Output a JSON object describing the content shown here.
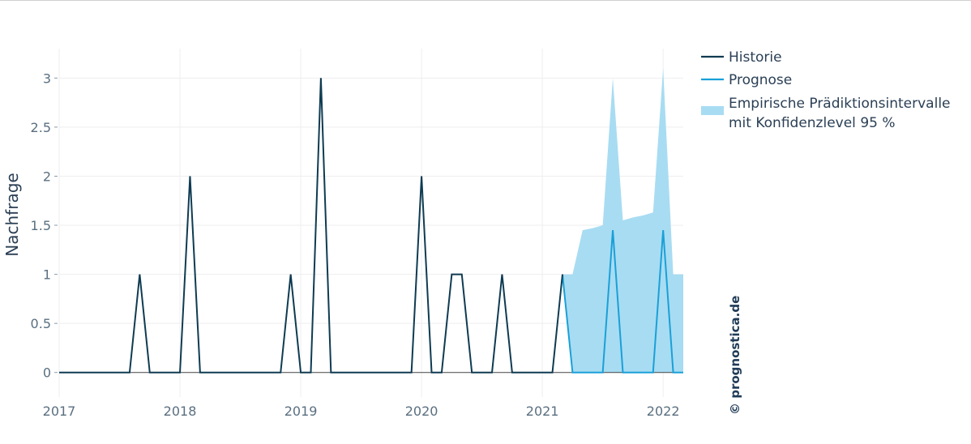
{
  "chart_data": {
    "type": "line",
    "ylabel": "Nachfrage",
    "xlabel": "",
    "x_ticks": [
      "2017",
      "2018",
      "2019",
      "2020",
      "2021",
      "2022"
    ],
    "y_ticks": [
      "0",
      "0.5",
      "1",
      "1.5",
      "2",
      "2.5",
      "3"
    ],
    "xlim": [
      "2017-01",
      "2022-03"
    ],
    "ylim": [
      -0.25,
      3.3
    ],
    "grid": true,
    "legend_position": "right",
    "watermark": "© prognostica.de",
    "colors": {
      "history": "#0f3b52",
      "forecast": "#1aa0d8",
      "interval": "#a8dcf2",
      "grid": "#eeeeee",
      "zeroline": "#444444"
    },
    "series": [
      {
        "name": "Historie",
        "x": [
          "2017-01",
          "2017-02",
          "2017-03",
          "2017-04",
          "2017-05",
          "2017-06",
          "2017-07",
          "2017-08",
          "2017-09",
          "2017-10",
          "2017-11",
          "2017-12",
          "2018-01",
          "2018-02",
          "2018-03",
          "2018-04",
          "2018-05",
          "2018-06",
          "2018-07",
          "2018-08",
          "2018-09",
          "2018-10",
          "2018-11",
          "2018-12",
          "2019-01",
          "2019-02",
          "2019-03",
          "2019-04",
          "2019-05",
          "2019-06",
          "2019-07",
          "2019-08",
          "2019-09",
          "2019-10",
          "2019-11",
          "2019-12",
          "2020-01",
          "2020-02",
          "2020-03",
          "2020-04",
          "2020-05",
          "2020-06",
          "2020-07",
          "2020-08",
          "2020-09",
          "2020-10",
          "2020-11",
          "2020-12",
          "2021-01",
          "2021-02",
          "2021-03"
        ],
        "y": [
          0,
          0,
          0,
          0,
          0,
          0,
          0,
          0,
          1,
          0,
          0,
          0,
          0,
          2,
          0,
          0,
          0,
          0,
          0,
          0,
          0,
          0,
          0,
          1,
          0,
          0,
          3,
          0,
          0,
          0,
          0,
          0,
          0,
          0,
          0,
          0,
          2,
          0,
          0,
          1,
          1,
          0,
          0,
          0,
          1,
          0,
          0,
          0,
          0,
          0,
          1
        ]
      },
      {
        "name": "Prognose",
        "x": [
          "2021-03",
          "2021-04",
          "2021-05",
          "2021-06",
          "2021-07",
          "2021-08",
          "2021-09",
          "2021-10",
          "2021-11",
          "2021-12",
          "2022-01",
          "2022-02",
          "2022-03"
        ],
        "y": [
          1,
          0,
          0,
          0,
          0,
          1.45,
          0,
          0,
          0,
          0,
          1.45,
          0,
          0
        ]
      },
      {
        "name": "Empirische Prädiktionsintervalle mit Konfidenzlevel 95 %",
        "x": [
          "2021-03",
          "2021-04",
          "2021-05",
          "2021-06",
          "2021-07",
          "2021-08",
          "2021-09",
          "2021-10",
          "2021-11",
          "2021-12",
          "2022-01",
          "2022-02",
          "2022-03"
        ],
        "lower": [
          1,
          0,
          0,
          0,
          0,
          0,
          0,
          0,
          0,
          0,
          0,
          0,
          0
        ],
        "upper": [
          1,
          1,
          1.45,
          1.47,
          1.5,
          3.0,
          1.55,
          1.58,
          1.6,
          1.63,
          3.1,
          1,
          1
        ]
      }
    ]
  }
}
